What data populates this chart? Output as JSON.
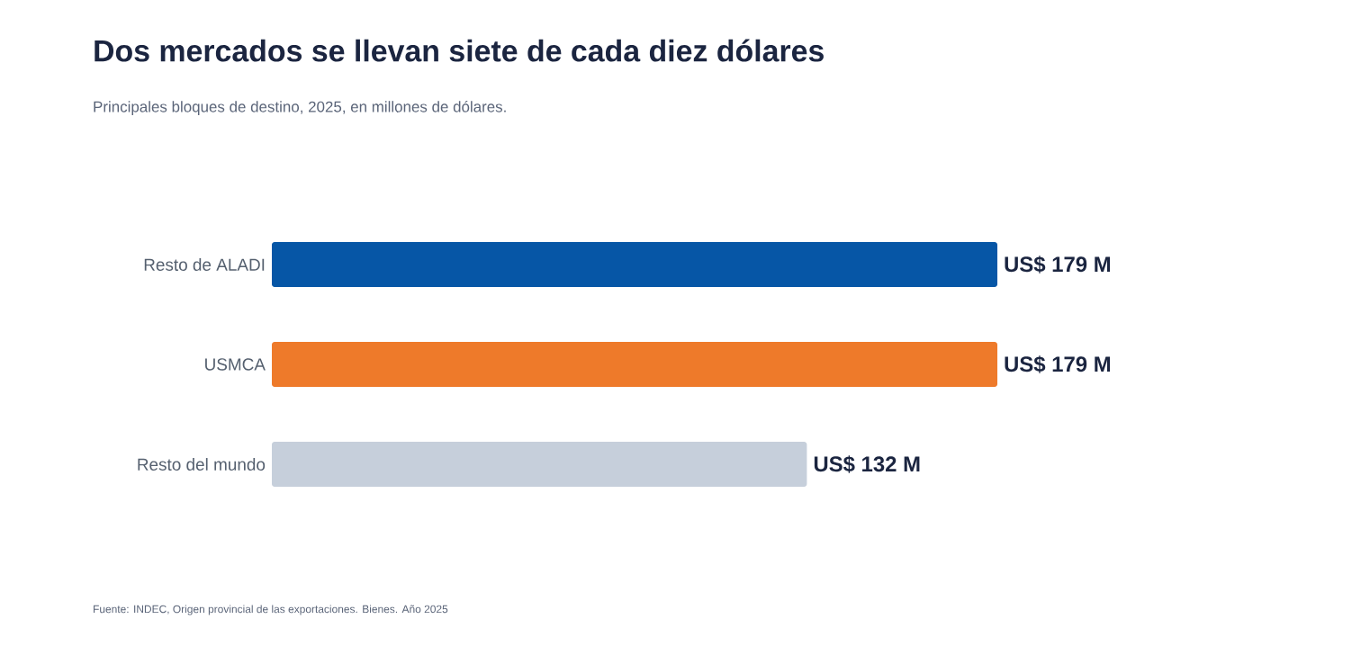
{
  "chart_data": {
    "type": "bar",
    "orientation": "horizontal",
    "title": "Dos mercados se llevan siete de cada diez dólares",
    "subtitle": "Principales bloques de destino, 2025, en millones de dólares.",
    "categories": [
      "Resto de ALADI",
      "USMCA",
      "Resto del mundo"
    ],
    "values": [
      179,
      179,
      132
    ],
    "colors": [
      "#0656a6",
      "#ee7a2a",
      "#c6cfdb"
    ],
    "value_labels": [
      "US$ 179 M",
      "US$ 179 M",
      "US$ 132 M"
    ],
    "annotations": [
      "Fuente: INDEC, Origen provincial de las exportaciones. Bienes. Año 2025"
    ]
  }
}
